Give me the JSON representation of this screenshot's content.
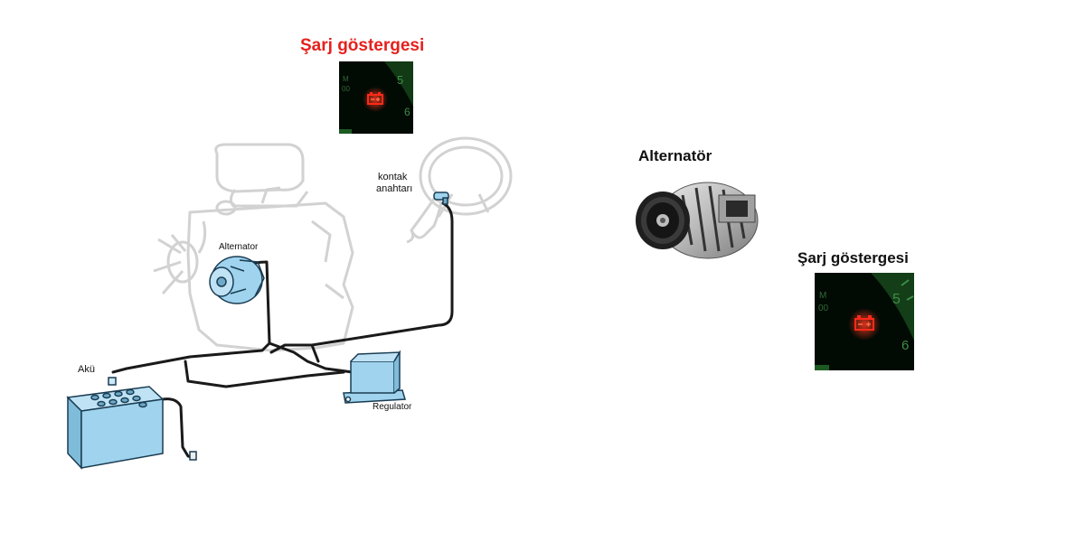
{
  "top_indicator": {
    "title": "Şarj göstergesi"
  },
  "right_indicator": {
    "title": "Şarj göstergesi"
  },
  "alternator_photo": {
    "title": "Alternatör"
  },
  "diagram": {
    "labels": {
      "ignition_line1": "kontak",
      "ignition_line2": "anahtarı",
      "alternator": "Alternator",
      "battery": "Akü",
      "regulator": "Regulator"
    }
  },
  "gauge_ticks": {
    "m": "M",
    "zero": "00",
    "five": "5",
    "six": "6"
  },
  "colors": {
    "title_red": "#e5211d",
    "warning_lamp": "#ff2a1a",
    "component_blue": "#9fd3ee",
    "wire": "#1a1a1a",
    "gauge_bg": "#020a04",
    "gauge_green": "#1d5a22"
  },
  "icons": [
    "battery-warning-icon"
  ]
}
